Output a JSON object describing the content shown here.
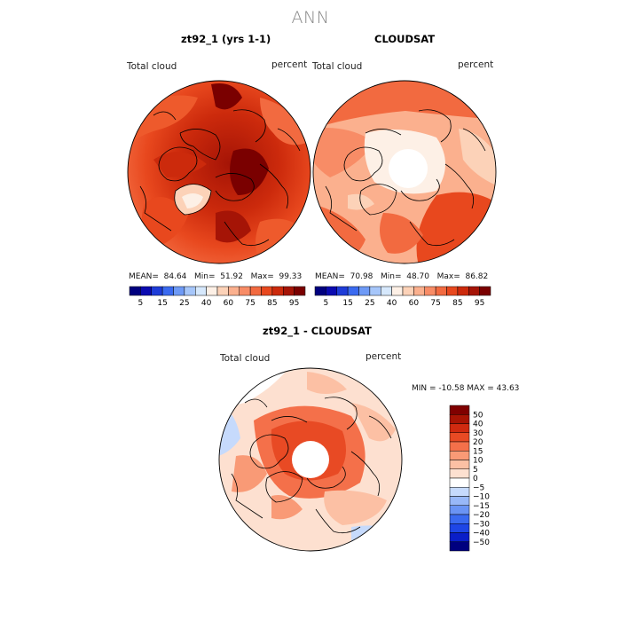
{
  "title": "ANN",
  "panels": [
    {
      "title": "zt92_1 (yrs 1-1)",
      "field_label": "Total cloud",
      "units_label": "percent",
      "stats": {
        "mean_label": "MEAN=",
        "mean": "84.64",
        "min_label": "Min=",
        "min": "51.92",
        "max_label": "Max=",
        "max": "99.33"
      }
    },
    {
      "title": "CLOUDSAT",
      "field_label": "Total cloud",
      "units_label": "percent",
      "stats": {
        "mean_label": "MEAN=",
        "mean": "70.98",
        "min_label": "Min=",
        "min": "48.70",
        "max_label": "Max=",
        "max": "86.82"
      }
    },
    {
      "title": "zt92_1 - CLOUDSAT",
      "field_label": "Total cloud",
      "units_label": "percent",
      "range_text": "MIN = -10.58 MAX =  43.63"
    }
  ],
  "colorbar_top": {
    "colors": [
      "#00007f",
      "#0a0ab0",
      "#1e3cd8",
      "#3a6af0",
      "#6e9af6",
      "#a6c6fa",
      "#d6e8fc",
      "#fdf0e6",
      "#fcd2b8",
      "#fbb08e",
      "#f88c66",
      "#f26a40",
      "#e8481e",
      "#cc2a0c",
      "#a51406",
      "#7a0000"
    ],
    "labels": [
      "5",
      "15",
      "25",
      "40",
      "60",
      "75",
      "85",
      "95"
    ]
  },
  "colorbar_diff": {
    "colors": [
      "#00007f",
      "#0a1ec8",
      "#1e46e6",
      "#3a6af0",
      "#6a94f4",
      "#98b8f8",
      "#c6dafc",
      "#ffffff",
      "#fde0d0",
      "#fcc0a4",
      "#f99a76",
      "#f4704a",
      "#e84a24",
      "#d02a10",
      "#a81404",
      "#800000"
    ],
    "labels": [
      "50",
      "40",
      "30",
      "20",
      "15",
      "10",
      "5",
      "0",
      "−5",
      "−10",
      "−15",
      "−20",
      "−30",
      "−40",
      "−50"
    ]
  },
  "map_colors": {
    "dark_red": "#a51406",
    "red": "#d8320e",
    "orange_red": "#ee5a2c",
    "salmon": "#f8966c",
    "peach": "#fbbc9c",
    "light_peach": "#fde0cc",
    "pale": "#fff4ec",
    "light_blue": "#c6dafc"
  }
}
